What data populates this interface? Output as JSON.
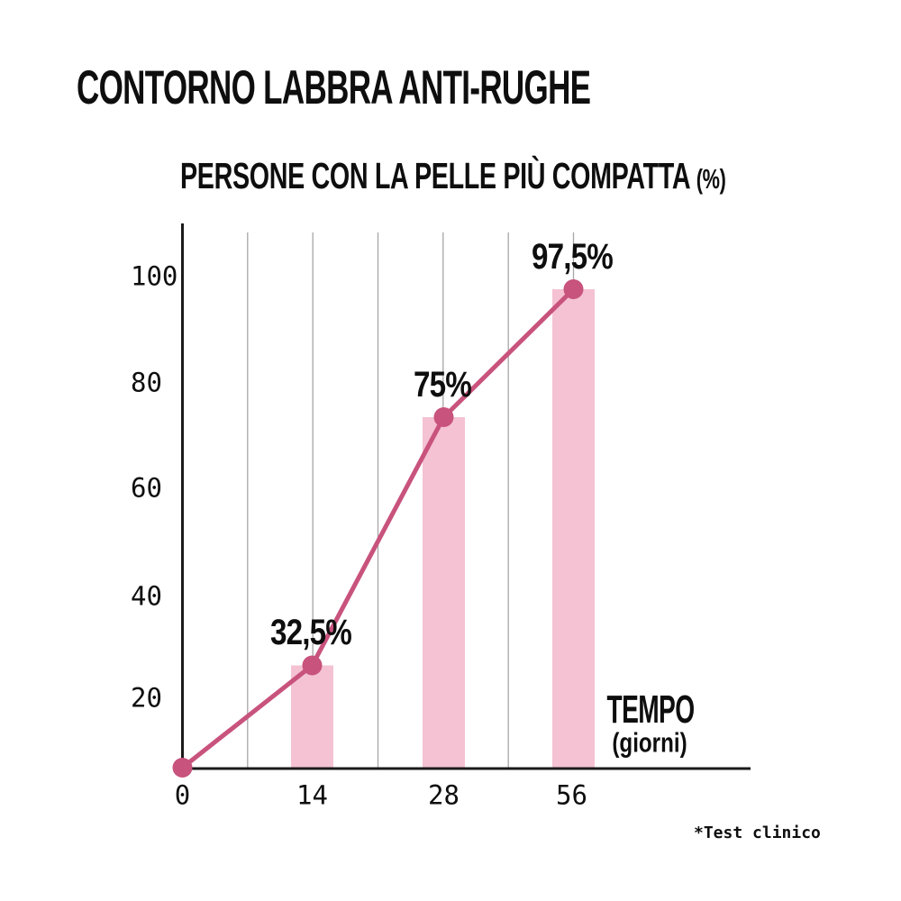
{
  "page": {
    "title": "CONTORNO LABBRA ANTI-RUGHE",
    "footnote": "*Test clinico"
  },
  "chart_data": {
    "type": "line",
    "title": "PERSONE CON LA PELLE PIÙ COMPATTA",
    "title_unit": "(%)",
    "xlabel": "TEMPO",
    "xlabel_unit": "(giorni)",
    "x": [
      0,
      14,
      28,
      56
    ],
    "values": [
      0,
      32.5,
      75,
      97.5
    ],
    "point_labels": [
      "",
      "32,5%",
      "75%",
      "97,5%"
    ],
    "x_tick_labels": [
      "0",
      "14",
      "28",
      "56"
    ],
    "y_tick_labels": [
      "100",
      "80",
      "60",
      "40",
      "20"
    ],
    "y_axis_range": [
      0,
      110
    ],
    "grid": "vertical",
    "grid_x_days": [
      7,
      14,
      21,
      28,
      42,
      56
    ],
    "bars_at_x": [
      14,
      28,
      56
    ],
    "legend": "none",
    "colors": {
      "line": "#c8537d",
      "dot": "#c8537d",
      "bar": "#f4c2d3",
      "grid": "#a6a6a6",
      "axis": "#1a1a1a",
      "text": "#0e0e0e",
      "background": "#ffffff"
    }
  }
}
